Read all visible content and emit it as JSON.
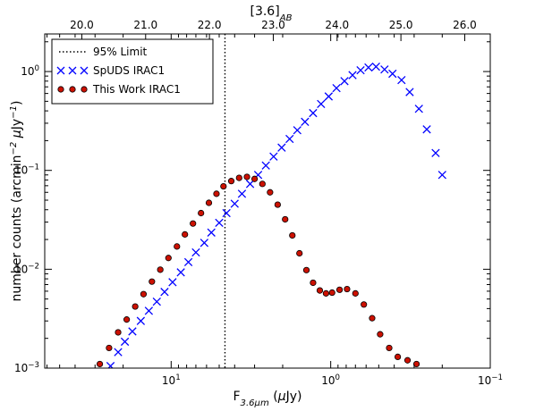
{
  "chart_data": {
    "type": "scatter",
    "x_scale": "log",
    "x_reversed": true,
    "y_scale": "log",
    "xlim": [
      0.1,
      62
    ],
    "ylim": [
      0.001,
      2.4
    ],
    "xlabel": "F$_{3.6\\mu m}$ ($\\mu$Jy)",
    "ylabel": "number counts (arcmin$^{-2}$ $\\mu$Jy$^{-1}$)",
    "top_axis_label": "[3.6]$_{AB}$",
    "top_ticks": [
      "20.0",
      "21.0",
      "22.0",
      "23.0",
      "24.0",
      "25.0",
      "26.0"
    ],
    "x_tick_labels": [
      "10^1",
      "10^0",
      "10^-1"
    ],
    "y_tick_labels": [
      "10^-3",
      "10^-2",
      "10^-1",
      "10^0"
    ],
    "limit_line": {
      "label": "95% Limit",
      "x": 4.6
    },
    "legend_position": "top-left",
    "series": [
      {
        "name": "SpUDS IRAC1",
        "marker": "x",
        "color": "#0000ff",
        "points": [
          [
            24.0,
            0.00105
          ],
          [
            21.5,
            0.00145
          ],
          [
            19.5,
            0.00185
          ],
          [
            17.5,
            0.00235
          ],
          [
            15.5,
            0.003
          ],
          [
            13.8,
            0.0038
          ],
          [
            12.3,
            0.0047
          ],
          [
            11.0,
            0.0059
          ],
          [
            9.8,
            0.0074
          ],
          [
            8.7,
            0.0093
          ],
          [
            7.8,
            0.0118
          ],
          [
            7.0,
            0.0148
          ],
          [
            6.2,
            0.0185
          ],
          [
            5.6,
            0.0235
          ],
          [
            5.0,
            0.0295
          ],
          [
            4.5,
            0.037
          ],
          [
            4.0,
            0.046
          ],
          [
            3.6,
            0.058
          ],
          [
            3.2,
            0.073
          ],
          [
            2.85,
            0.09
          ],
          [
            2.55,
            0.112
          ],
          [
            2.28,
            0.138
          ],
          [
            2.03,
            0.17
          ],
          [
            1.81,
            0.208
          ],
          [
            1.62,
            0.255
          ],
          [
            1.45,
            0.31
          ],
          [
            1.29,
            0.38
          ],
          [
            1.15,
            0.47
          ],
          [
            1.03,
            0.56
          ],
          [
            0.92,
            0.68
          ],
          [
            0.82,
            0.8
          ],
          [
            0.73,
            0.92
          ],
          [
            0.65,
            1.03
          ],
          [
            0.58,
            1.1
          ],
          [
            0.52,
            1.12
          ],
          [
            0.46,
            1.05
          ],
          [
            0.41,
            0.95
          ],
          [
            0.36,
            0.82
          ],
          [
            0.32,
            0.62
          ],
          [
            0.28,
            0.42
          ],
          [
            0.25,
            0.26
          ],
          [
            0.22,
            0.15
          ],
          [
            0.2,
            0.09
          ]
        ]
      },
      {
        "name": "This Work IRAC1",
        "marker": "o",
        "color": "#cc1100",
        "points": [
          [
            28.0,
            0.0011
          ],
          [
            24.5,
            0.0016
          ],
          [
            21.5,
            0.0023
          ],
          [
            19.0,
            0.0031
          ],
          [
            16.8,
            0.0042
          ],
          [
            14.9,
            0.0056
          ],
          [
            13.2,
            0.0075
          ],
          [
            11.7,
            0.0099
          ],
          [
            10.4,
            0.013
          ],
          [
            9.2,
            0.017
          ],
          [
            8.2,
            0.0225
          ],
          [
            7.3,
            0.029
          ],
          [
            6.5,
            0.037
          ],
          [
            5.8,
            0.047
          ],
          [
            5.2,
            0.058
          ],
          [
            4.7,
            0.069
          ],
          [
            4.2,
            0.078
          ],
          [
            3.75,
            0.084
          ],
          [
            3.35,
            0.086
          ],
          [
            3.0,
            0.082
          ],
          [
            2.68,
            0.073
          ],
          [
            2.4,
            0.06
          ],
          [
            2.15,
            0.045
          ],
          [
            1.93,
            0.032
          ],
          [
            1.74,
            0.022
          ],
          [
            1.57,
            0.0145
          ],
          [
            1.42,
            0.0098
          ],
          [
            1.29,
            0.0073
          ],
          [
            1.17,
            0.0061
          ],
          [
            1.07,
            0.0057
          ],
          [
            0.98,
            0.0058
          ],
          [
            0.88,
            0.0062
          ],
          [
            0.79,
            0.0063
          ],
          [
            0.7,
            0.0057
          ],
          [
            0.62,
            0.0044
          ],
          [
            0.55,
            0.0032
          ],
          [
            0.49,
            0.0022
          ],
          [
            0.43,
            0.0016
          ],
          [
            0.38,
            0.0013
          ],
          [
            0.33,
            0.0012
          ],
          [
            0.29,
            0.0011
          ]
        ]
      }
    ]
  }
}
